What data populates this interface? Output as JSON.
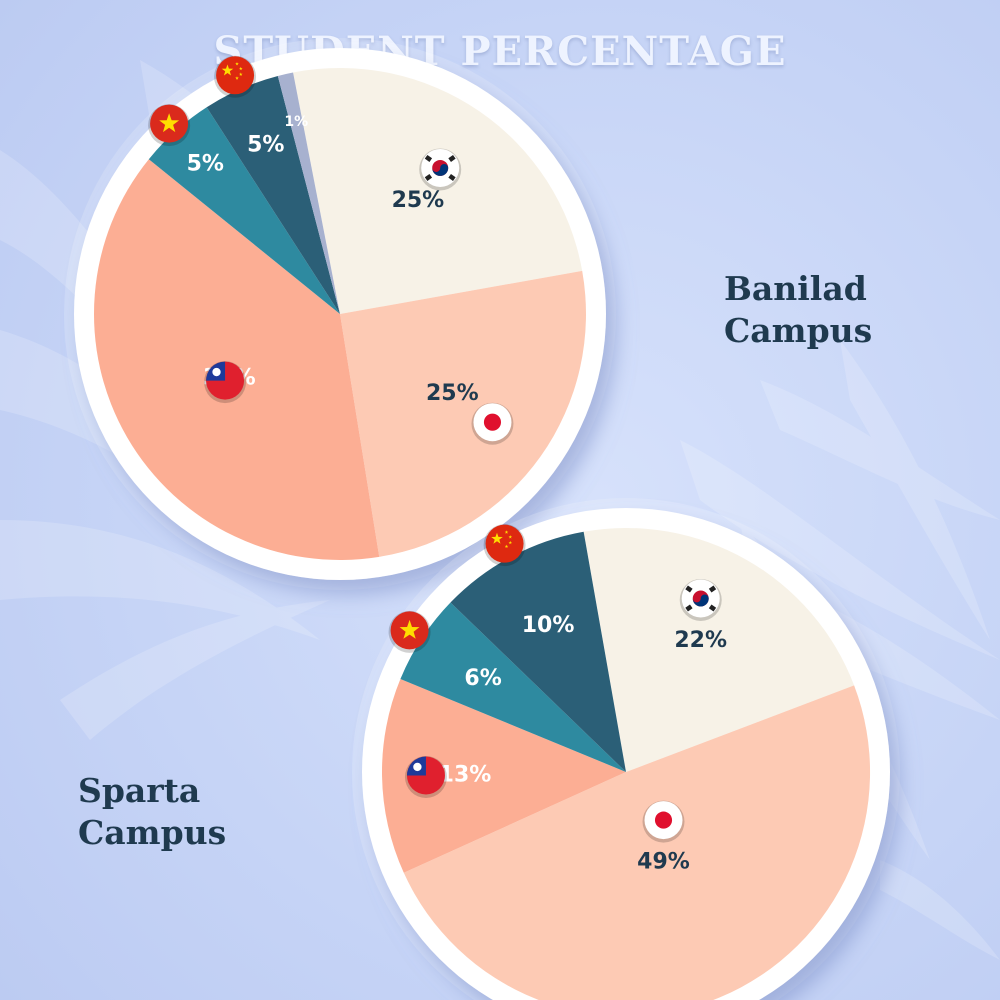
{
  "title": "STUDENT PERCENTAGE",
  "chart_data": [
    {
      "type": "pie",
      "title": "Banilad Campus",
      "title_lines": [
        "Banilad",
        "Campus"
      ],
      "slices": [
        {
          "flag": "south-korea-flag",
          "label": "25%",
          "value": 25,
          "color": "#f7f2e7",
          "text_color": "#1f3a4f"
        },
        {
          "flag": "japan-flag",
          "label": "25%",
          "value": 25,
          "color": "#fdcab4",
          "text_color": "#1f3a4f"
        },
        {
          "flag": "taiwan-flag",
          "label": "38%",
          "value": 38,
          "color": "#fcae94",
          "text_color": "#ffffff"
        },
        {
          "flag": "vietnam-flag",
          "label": "5%",
          "value": 5,
          "color": "#2e8aa0",
          "text_color": "#ffffff"
        },
        {
          "flag": "china-flag",
          "label": "5%",
          "value": 5,
          "color": "#2b5f77",
          "text_color": "#ffffff"
        },
        {
          "flag": "",
          "label": "1%",
          "value": 1,
          "color": "#a7b1cf",
          "text_color": "#ffffff"
        }
      ]
    },
    {
      "type": "pie",
      "title": "Sparta Campus",
      "title_lines": [
        "Sparta",
        "Campus"
      ],
      "slices": [
        {
          "flag": "south-korea-flag",
          "label": "22%",
          "value": 22,
          "color": "#f7f2e7",
          "text_color": "#1f3a4f"
        },
        {
          "flag": "japan-flag",
          "label": "49%",
          "value": 49,
          "color": "#fdcab4",
          "text_color": "#1f3a4f"
        },
        {
          "flag": "taiwan-flag",
          "label": "13%",
          "value": 13,
          "color": "#fcae94",
          "text_color": "#ffffff"
        },
        {
          "flag": "vietnam-flag",
          "label": "6%",
          "value": 6,
          "color": "#2e8aa0",
          "text_color": "#ffffff"
        },
        {
          "flag": "china-flag",
          "label": "10%",
          "value": 10,
          "color": "#2b5f77",
          "text_color": "#ffffff"
        }
      ]
    }
  ]
}
